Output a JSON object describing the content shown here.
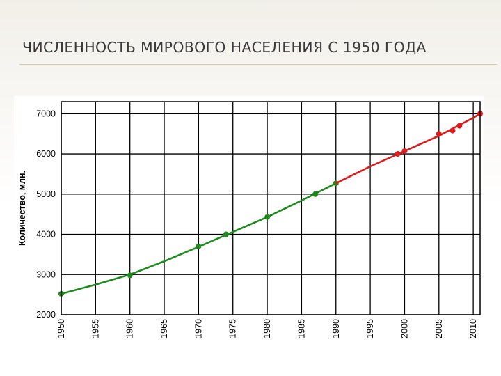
{
  "slide": {
    "title": "ЧИСЛЕННОСТЬ МИРОВОГО НАСЕЛЕНИЯ С 1950 ГОДА"
  },
  "chart_data": {
    "type": "line",
    "title": "",
    "xlabel": "",
    "ylabel": "Количество, млн.",
    "xlim": [
      1950,
      2011
    ],
    "ylim": [
      2000,
      7300
    ],
    "x_ticks": [
      1950,
      1955,
      1960,
      1965,
      1970,
      1975,
      1980,
      1985,
      1990,
      1995,
      2000,
      2005,
      2010
    ],
    "y_ticks": [
      2000,
      3000,
      4000,
      5000,
      6000,
      7000
    ],
    "grid": true,
    "legend": "none",
    "series": [
      {
        "color": "#1e8a1e",
        "curve": [
          [
            1950,
            2520
          ],
          [
            1955,
            2750
          ],
          [
            1960,
            3000
          ],
          [
            1965,
            3330
          ],
          [
            1970,
            3690
          ],
          [
            1975,
            4060
          ],
          [
            1980,
            4430
          ],
          [
            1985,
            4840
          ],
          [
            1990,
            5270
          ]
        ],
        "points": [
          [
            1950,
            2520
          ],
          [
            1960,
            2980
          ],
          [
            1970,
            3700
          ],
          [
            1974,
            4000
          ],
          [
            1980,
            4430
          ],
          [
            1987,
            5000
          ],
          [
            1990,
            5270
          ]
        ]
      },
      {
        "color": "#e01b1b",
        "curve": [
          [
            1990,
            5270
          ],
          [
            1995,
            5690
          ],
          [
            2000,
            6070
          ],
          [
            2005,
            6450
          ],
          [
            2010,
            6900
          ],
          [
            2011,
            7000
          ]
        ],
        "points": [
          [
            1999,
            6000
          ],
          [
            2000,
            6070
          ],
          [
            2005,
            6500
          ],
          [
            2007,
            6580
          ],
          [
            2008,
            6700
          ],
          [
            2011,
            7000
          ]
        ]
      }
    ]
  }
}
